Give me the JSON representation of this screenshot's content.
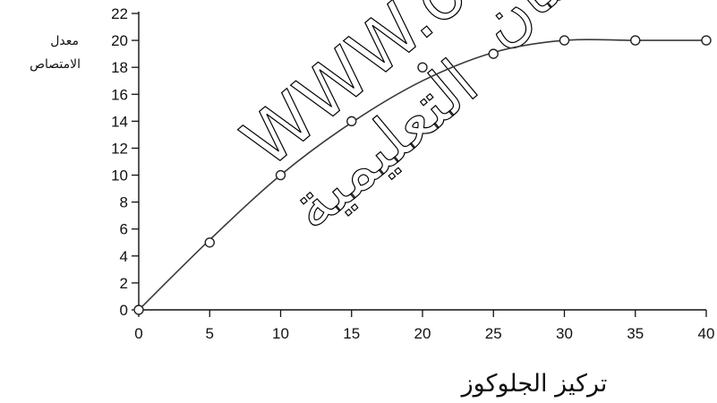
{
  "chart_data": {
    "type": "line",
    "title": "",
    "xlabel": "تركيز الجلوكوز",
    "ylabel_lines": [
      "معدل",
      "الامتصاص"
    ],
    "xlim": [
      0,
      40
    ],
    "ylim": [
      0,
      22
    ],
    "x_ticks": [
      0,
      5,
      10,
      15,
      20,
      25,
      30,
      35,
      40
    ],
    "y_ticks": [
      0,
      2,
      4,
      6,
      8,
      10,
      12,
      14,
      16,
      18,
      20,
      22
    ],
    "x_tick_labels": [
      "0",
      "5",
      "10",
      "15",
      "20",
      "25",
      "30",
      "35",
      "40"
    ],
    "y_tick_labels": [
      "0",
      "2",
      "4",
      "6",
      "8",
      "10",
      "12",
      "14",
      "16",
      "18",
      "20",
      "22"
    ],
    "grid": false,
    "legend": "none",
    "series": [
      {
        "points": [
          {
            "x": 0,
            "y": 0
          },
          {
            "x": 5,
            "y": 5
          },
          {
            "x": 10,
            "y": 10
          },
          {
            "x": 15,
            "y": 14
          },
          {
            "x": 20,
            "y": 18
          },
          {
            "x": 25,
            "y": 19
          },
          {
            "x": 30,
            "y": 20
          },
          {
            "x": 35,
            "y": 20
          },
          {
            "x": 40,
            "y": 20
          }
        ],
        "curve": [
          {
            "x": 0,
            "y": 0
          },
          {
            "x": 5,
            "y": 5.2
          },
          {
            "x": 10,
            "y": 10
          },
          {
            "x": 15,
            "y": 13.9
          },
          {
            "x": 20,
            "y": 17
          },
          {
            "x": 25,
            "y": 19.1
          },
          {
            "x": 30,
            "y": 20
          },
          {
            "x": 35,
            "y": 20
          },
          {
            "x": 40,
            "y": 20
          }
        ]
      }
    ],
    "colors": {
      "axis": "#111111",
      "line": "#3a3a3a",
      "marker_fill": "#ffffff",
      "marker_stroke": "#222222",
      "watermark": "#000000"
    }
  },
  "watermark": {
    "line1": "WWW.o",
    "line2": "عمان",
    "line3": "التعليمية"
  }
}
